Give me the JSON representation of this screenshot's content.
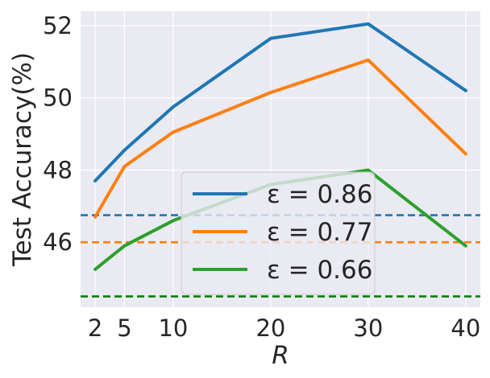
{
  "chart_data": {
    "type": "line",
    "xlabel": "R",
    "ylabel": "Test Accuracy(%)",
    "x": [
      2,
      5,
      10,
      20,
      30,
      40
    ],
    "xticks": [
      "2",
      "5",
      "10",
      "20",
      "30",
      "40"
    ],
    "yticks": [
      46,
      48,
      50,
      52
    ],
    "xlim": [
      0.5,
      41.5
    ],
    "ylim": [
      44.2,
      52.4
    ],
    "grid": true,
    "legend_position": "lower-center",
    "series": [
      {
        "name": "ε = 0.86",
        "color": "#1f77b4",
        "values": [
          47.7,
          48.55,
          49.75,
          51.65,
          52.05,
          50.2
        ],
        "baseline": 46.75,
        "baseline_color": "#1f77b4"
      },
      {
        "name": "ε = 0.77",
        "color": "#ff7f0e",
        "values": [
          46.7,
          48.1,
          49.05,
          50.15,
          51.05,
          48.45
        ],
        "baseline": 46.0,
        "baseline_color": "#ff7f0e"
      },
      {
        "name": "ε = 0.66",
        "color": "#2ca02c",
        "values": [
          45.25,
          45.9,
          46.6,
          47.6,
          48.0,
          45.9
        ],
        "baseline": 44.5,
        "baseline_color": "#008000"
      }
    ]
  }
}
